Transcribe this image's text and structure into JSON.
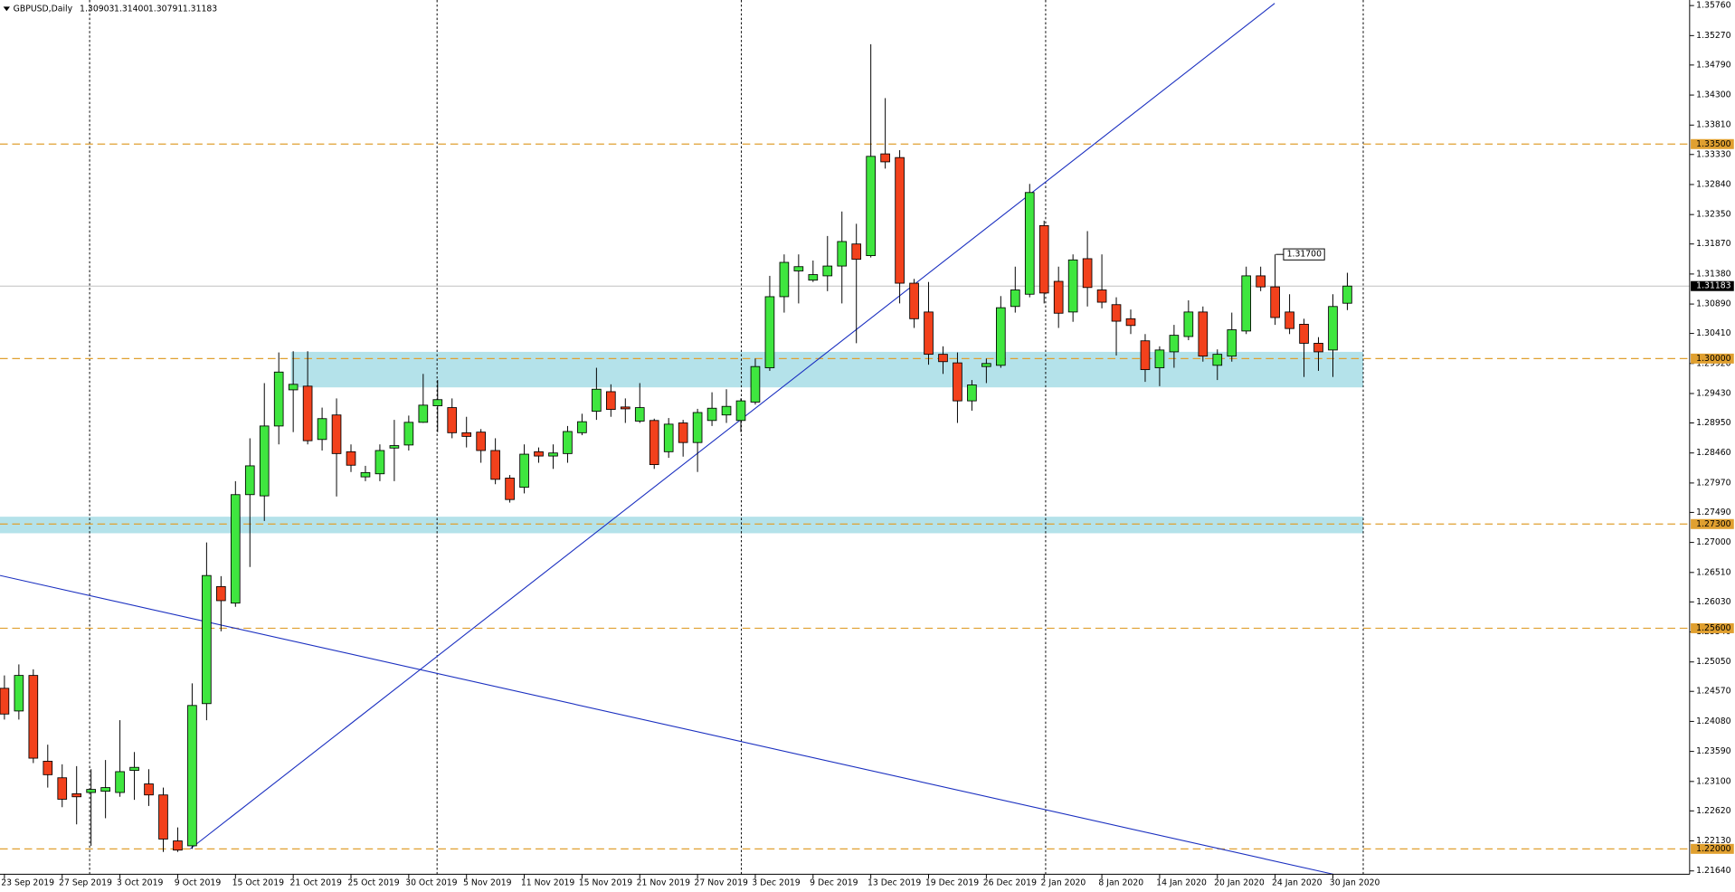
{
  "chart_data": {
    "type": "candlestick",
    "title": "GBPUSD,Daily",
    "last_bar_labels": [
      "1.30903",
      "1.31400",
      "1.30791",
      "1.31183"
    ],
    "categories": [
      "23 Sep 2019",
      null,
      null,
      null,
      "27 Sep 2019",
      null,
      null,
      null,
      "3 Oct 2019",
      null,
      null,
      null,
      "9 Oct 2019",
      null,
      null,
      null,
      "15 Oct 2019",
      null,
      null,
      null,
      "21 Oct 2019",
      null,
      null,
      null,
      "25 Oct 2019",
      null,
      null,
      null,
      "30 Oct 2019",
      null,
      null,
      null,
      "5 Nov 2019",
      null,
      null,
      null,
      "11 Nov 2019",
      null,
      null,
      null,
      "15 Nov 2019",
      null,
      null,
      null,
      "21 Nov 2019",
      null,
      null,
      null,
      "27 Nov 2019",
      null,
      null,
      null,
      "3 Dec 2019",
      null,
      null,
      null,
      "9 Dec 2019",
      null,
      null,
      null,
      "13 Dec 2019",
      null,
      null,
      null,
      "19 Dec 2019",
      null,
      null,
      null,
      "26 Dec 2019",
      null,
      null,
      null,
      "2 Jan 2020",
      null,
      null,
      null,
      "8 Jan 2020",
      null,
      null,
      null,
      "14 Jan 2020",
      null,
      null,
      null,
      "20 Jan 2020",
      null,
      null,
      null,
      "24 Jan 2020",
      null,
      null,
      null,
      "30 Jan 2020",
      null
    ],
    "open": [
      1.2462,
      1.2425,
      1.2483,
      1.2343,
      1.2316,
      1.229,
      1.2292,
      1.2294,
      1.2292,
      1.2328,
      1.2306,
      1.2288,
      1.2213,
      1.2205,
      1.2437,
      1.2628,
      1.2601,
      1.2778,
      1.2776,
      1.289,
      1.2949,
      1.2955,
      1.2868,
      1.2908,
      1.2848,
      1.2807,
      1.2812,
      1.2854,
      1.2859,
      1.2896,
      1.2923,
      1.292,
      1.2879,
      1.288,
      1.285,
      1.2805,
      1.279,
      1.2848,
      1.2841,
      1.2845,
      1.2879,
      1.2914,
      1.2946,
      1.2921,
      1.2898,
      1.2899,
      1.2848,
      1.2895,
      1.2863,
      1.2899,
      1.2908,
      1.2899,
      1.2929,
      1.2985,
      1.3101,
      1.3143,
      1.3128,
      1.3135,
      1.3151,
      1.3187,
      1.3168,
      1.3334,
      1.3328,
      1.3123,
      1.3076,
      1.3007,
      1.2993,
      1.2931,
      1.2987,
      1.2989,
      1.3085,
      1.3105,
      1.3217,
      1.3126,
      1.3076,
      1.3163,
      1.3112,
      1.3088,
      1.3065,
      1.3029,
      1.2985,
      1.3011,
      1.3036,
      1.3076,
      1.2989,
      1.3004,
      1.3045,
      1.3135,
      1.3117,
      1.3076,
      1.3056,
      1.3025,
      1.3014,
      1.30903
    ],
    "high": [
      1.2483,
      1.2501,
      1.2493,
      1.237,
      1.2338,
      1.2335,
      1.233,
      1.2345,
      1.241,
      1.2358,
      1.233,
      1.23,
      1.2235,
      1.247,
      1.27,
      1.2645,
      1.28,
      1.287,
      1.296,
      1.301,
      1.3012,
      1.3012,
      1.292,
      1.2935,
      1.286,
      1.2825,
      1.286,
      1.29,
      1.2907,
      1.2975,
      1.2965,
      1.2935,
      1.2905,
      1.2885,
      1.287,
      1.281,
      1.286,
      1.2855,
      1.286,
      1.289,
      1.291,
      1.2985,
      1.2958,
      1.2935,
      1.296,
      1.2902,
      1.2903,
      1.29,
      1.2918,
      1.2945,
      1.295,
      1.2935,
      1.3,
      1.3135,
      1.317,
      1.317,
      1.316,
      1.32,
      1.324,
      1.322,
      1.3513,
      1.3425,
      1.334,
      1.313,
      1.3125,
      1.302,
      1.301,
      1.2965,
      1.3,
      1.3102,
      1.315,
      1.3285,
      1.3225,
      1.315,
      1.317,
      1.3208,
      1.317,
      1.31,
      1.308,
      1.304,
      1.302,
      1.3055,
      1.3095,
      1.3085,
      1.3015,
      1.3075,
      1.315,
      1.315,
      1.317,
      1.3105,
      1.3065,
      1.3035,
      1.3105,
      1.314
    ],
    "low": [
      1.2411,
      1.2411,
      1.234,
      1.23,
      1.2268,
      1.224,
      1.2205,
      1.225,
      1.2285,
      1.228,
      1.227,
      1.2195,
      1.2195,
      1.22,
      1.241,
      1.2555,
      1.2595,
      1.266,
      1.2735,
      1.286,
      1.288,
      1.286,
      1.285,
      1.2775,
      1.2815,
      1.28,
      1.28,
      1.28,
      1.285,
      1.2895,
      1.288,
      1.287,
      1.2855,
      1.283,
      1.2795,
      1.2765,
      1.278,
      1.283,
      1.282,
      1.283,
      1.2875,
      1.29,
      1.2905,
      1.2895,
      1.2895,
      1.282,
      1.2838,
      1.284,
      1.2815,
      1.289,
      1.2895,
      1.288,
      1.2925,
      1.298,
      1.3075,
      1.309,
      1.3125,
      1.311,
      1.309,
      1.3025,
      1.3165,
      1.331,
      1.309,
      1.305,
      1.299,
      1.2975,
      1.2895,
      1.2915,
      1.296,
      1.2985,
      1.3075,
      1.31,
      1.309,
      1.305,
      1.306,
      1.3085,
      1.3082,
      1.3005,
      1.304,
      1.2962,
      1.2955,
      1.2985,
      1.303,
      1.2995,
      1.2965,
      1.2995,
      1.304,
      1.311,
      1.3055,
      1.304,
      1.297,
      1.298,
      1.297,
      1.30791
    ],
    "close": [
      1.242,
      1.2483,
      1.2348,
      1.2321,
      1.2281,
      1.2285,
      1.2297,
      1.23,
      1.2326,
      1.2333,
      1.2288,
      1.2216,
      1.2198,
      1.2434,
      1.2646,
      1.2605,
      1.2778,
      1.2825,
      1.289,
      1.2978,
      1.2958,
      1.2866,
      1.2902,
      1.2845,
      1.2826,
      1.2814,
      1.285,
      1.2858,
      1.2896,
      1.2924,
      1.2933,
      1.2879,
      1.2873,
      1.285,
      1.2803,
      1.277,
      1.2844,
      1.2841,
      1.2846,
      1.2881,
      1.2897,
      1.295,
      1.2917,
      1.2918,
      1.292,
      1.2827,
      1.2893,
      1.2863,
      1.2912,
      1.2919,
      1.2922,
      1.2931,
      1.2987,
      1.3101,
      1.3157,
      1.315,
      1.3137,
      1.3151,
      1.3191,
      1.3162,
      1.333,
      1.3321,
      1.3123,
      1.3065,
      1.3007,
      1.2995,
      1.2931,
      1.2957,
      1.2992,
      1.3083,
      1.3112,
      1.3271,
      1.3107,
      1.3074,
      1.3161,
      1.3116,
      1.3092,
      1.3061,
      1.3054,
      1.2982,
      1.3014,
      1.3038,
      1.3076,
      1.3004,
      1.3007,
      1.3047,
      1.3135,
      1.3117,
      1.3067,
      1.3049,
      1.3025,
      1.3011,
      1.3085,
      1.31183
    ],
    "up_color": "#3fe63f",
    "down_color": "#f2411c",
    "ylim": [
      1.2164,
      1.3576
    ],
    "yticks": [
      {
        "value": 1.3576,
        "label": "1.35760"
      },
      {
        "value": 1.3527,
        "label": "1.35270"
      },
      {
        "value": 1.3479,
        "label": "1.34790"
      },
      {
        "value": 1.343,
        "label": "1.34300"
      },
      {
        "value": 1.3381,
        "label": "1.33810"
      },
      {
        "value": 1.3333,
        "label": "1.33330"
      },
      {
        "value": 1.3284,
        "label": "1.32840"
      },
      {
        "value": 1.3235,
        "label": "1.32350"
      },
      {
        "value": 1.3187,
        "label": "1.31870"
      },
      {
        "value": 1.3138,
        "label": "1.31380"
      },
      {
        "value": 1.3089,
        "label": "1.30890"
      },
      {
        "value": 1.3041,
        "label": "1.30410"
      },
      {
        "value": 1.2992,
        "label": "1.29920"
      },
      {
        "value": 1.2943,
        "label": "1.29430"
      },
      {
        "value": 1.2895,
        "label": "1.28950"
      },
      {
        "value": 1.2846,
        "label": "1.28460"
      },
      {
        "value": 1.2797,
        "label": "1.27970"
      },
      {
        "value": 1.2749,
        "label": "1.27490"
      },
      {
        "value": 1.27,
        "label": "1.27000"
      },
      {
        "value": 1.2651,
        "label": "1.26510"
      },
      {
        "value": 1.2603,
        "label": "1.26030"
      },
      {
        "value": 1.2554,
        "label": "1.25540"
      },
      {
        "value": 1.2505,
        "label": "1.25050"
      },
      {
        "value": 1.2457,
        "label": "1.24570"
      },
      {
        "value": 1.2408,
        "label": "1.24080"
      },
      {
        "value": 1.2359,
        "label": "1.23590"
      },
      {
        "value": 1.231,
        "label": "1.23100"
      },
      {
        "value": 1.2262,
        "label": "1.22620"
      },
      {
        "value": 1.2213,
        "label": "1.22130"
      },
      {
        "value": 1.2164,
        "label": "1.21640"
      }
    ],
    "grid": false,
    "levels": [
      {
        "value": 1.335,
        "label": "1.33500"
      },
      {
        "value": 1.3,
        "label": "1.30000"
      },
      {
        "value": 1.273,
        "label": "1.27300"
      },
      {
        "value": 1.256,
        "label": "1.25600"
      },
      {
        "value": 1.22,
        "label": "1.22000"
      }
    ],
    "level_color": "#e0a030",
    "zones": [
      [
        1.2953,
        1.3011
      ],
      [
        1.2715,
        1.2742
      ]
    ],
    "zone_color": "#b4e2ea",
    "annotation": {
      "value": 1.317,
      "label": "1.31700"
    }
  }
}
